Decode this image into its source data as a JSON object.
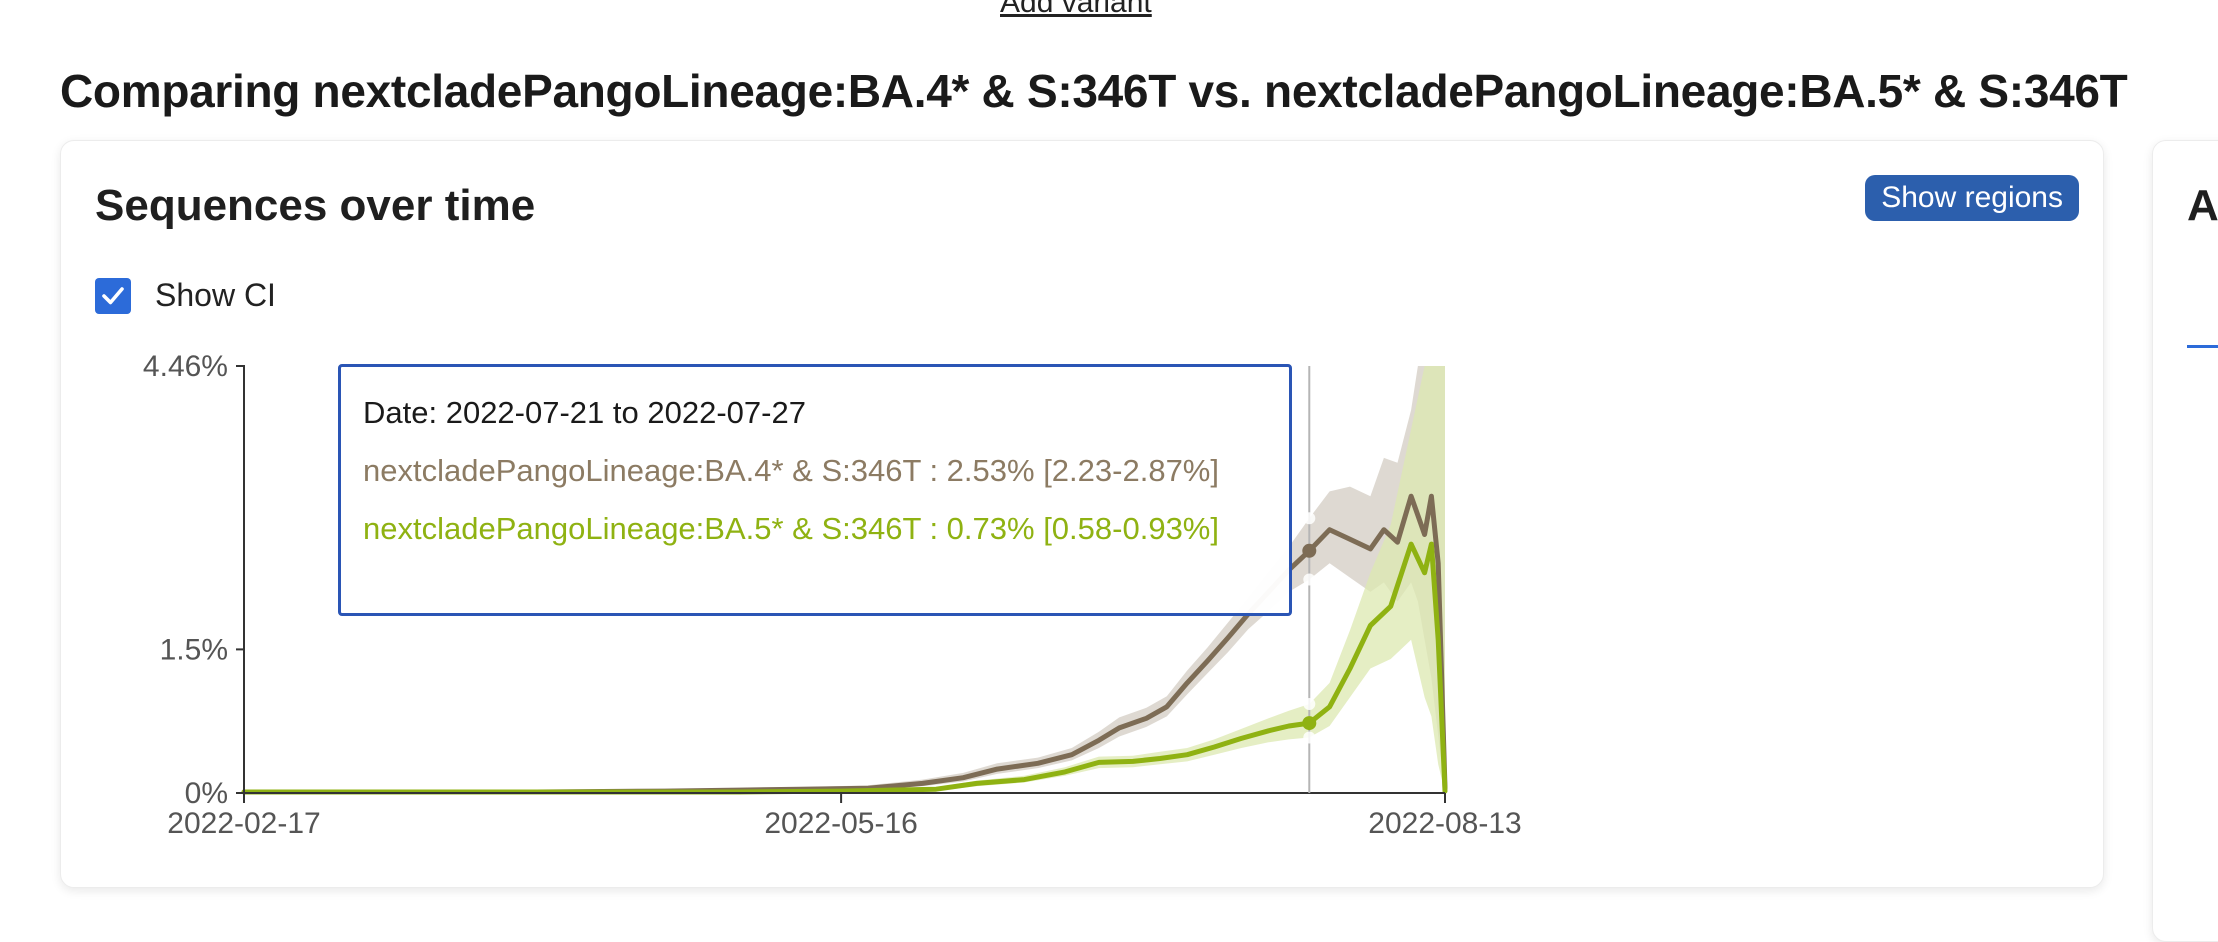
{
  "header": {
    "add_variant": "Add variant",
    "title": "Comparing nextcladePangoLineage:BA.4* & S:346T vs. nextcladePangoLineage:BA.5* & S:346T"
  },
  "card": {
    "title": "Sequences over time",
    "show_regions": "Show regions",
    "show_ci_label": "Show CI",
    "show_ci_checked": true
  },
  "side_card": {
    "title_fragment": "A"
  },
  "tooltip": {
    "date": "Date: 2022-07-21 to 2022-07-27",
    "rows": [
      {
        "text": "nextcladePangoLineage:BA.4* & S:346T : 2.53% [2.23-2.87%]",
        "color": "#8c7b63"
      },
      {
        "text": "nextcladePangoLineage:BA.5* & S:346T : 0.73% [0.58-0.93%]",
        "color": "#8fb212"
      }
    ]
  },
  "chart_data": {
    "type": "line",
    "x_ticks": [
      "2022-02-17",
      "2022-05-16",
      "2022-08-13"
    ],
    "y_ticks": [
      "0%",
      "1.5%",
      "4.46%"
    ],
    "ylim": [
      0,
      4.46
    ],
    "xlim": [
      "2022-02-17",
      "2022-08-13"
    ],
    "hover_date": "2022-07-24",
    "series": [
      {
        "name": "nextcladePangoLineage:BA.4* & S:346T",
        "color": "#7d6c55",
        "band_color": "#d8d2ca",
        "points": [
          [
            "2022-02-17",
            0.01,
            0,
            0.03
          ],
          [
            "2022-03-10",
            0.01,
            0,
            0.03
          ],
          [
            "2022-04-01",
            0.01,
            0,
            0.03
          ],
          [
            "2022-04-20",
            0.02,
            0.01,
            0.04
          ],
          [
            "2022-05-01",
            0.03,
            0.01,
            0.05
          ],
          [
            "2022-05-10",
            0.04,
            0.02,
            0.06
          ],
          [
            "2022-05-20",
            0.05,
            0.03,
            0.08
          ],
          [
            "2022-05-28",
            0.1,
            0.07,
            0.14
          ],
          [
            "2022-06-03",
            0.16,
            0.12,
            0.21
          ],
          [
            "2022-06-08",
            0.25,
            0.2,
            0.31
          ],
          [
            "2022-06-14",
            0.31,
            0.26,
            0.37
          ],
          [
            "2022-06-19",
            0.4,
            0.34,
            0.47
          ],
          [
            "2022-06-23",
            0.55,
            0.47,
            0.64
          ],
          [
            "2022-06-26",
            0.68,
            0.59,
            0.79
          ],
          [
            "2022-06-30",
            0.78,
            0.69,
            0.89
          ],
          [
            "2022-07-03",
            0.9,
            0.8,
            1.01
          ],
          [
            "2022-07-06",
            1.15,
            1.03,
            1.28
          ],
          [
            "2022-07-09",
            1.38,
            1.25,
            1.52
          ],
          [
            "2022-07-12",
            1.62,
            1.47,
            1.78
          ],
          [
            "2022-07-15",
            1.87,
            1.71,
            2.04
          ],
          [
            "2022-07-18",
            2.1,
            1.9,
            2.31
          ],
          [
            "2022-07-21",
            2.33,
            2.1,
            2.57
          ],
          [
            "2022-07-24",
            2.53,
            2.23,
            2.87
          ],
          [
            "2022-07-27",
            2.75,
            2.4,
            3.15
          ],
          [
            "2022-07-30",
            2.65,
            2.25,
            3.2
          ],
          [
            "2022-08-02",
            2.55,
            2.1,
            3.1
          ],
          [
            "2022-08-04",
            2.75,
            2.2,
            3.5
          ],
          [
            "2022-08-06",
            2.62,
            2.0,
            3.45
          ],
          [
            "2022-08-08",
            3.1,
            2.2,
            4.0
          ],
          [
            "2022-08-09",
            2.9,
            2.0,
            4.46
          ],
          [
            "2022-08-10",
            2.7,
            1.6,
            4.46
          ],
          [
            "2022-08-11",
            3.1,
            1.2,
            4.46
          ],
          [
            "2022-08-12",
            2.4,
            0.6,
            4.46
          ],
          [
            "2022-08-13",
            0.05,
            0,
            4.46
          ]
        ]
      },
      {
        "name": "nextcladePangoLineage:BA.5* & S:346T",
        "color": "#8fb212",
        "band_color": "#dce8b0",
        "points": [
          [
            "2022-02-17",
            0.01,
            0,
            0.02
          ],
          [
            "2022-03-15",
            0.01,
            0,
            0.02
          ],
          [
            "2022-04-10",
            0.01,
            0,
            0.02
          ],
          [
            "2022-05-01",
            0.01,
            0,
            0.02
          ],
          [
            "2022-05-16",
            0.02,
            0.01,
            0.03
          ],
          [
            "2022-05-30",
            0.04,
            0.02,
            0.06
          ],
          [
            "2022-06-05",
            0.1,
            0.07,
            0.13
          ],
          [
            "2022-06-12",
            0.14,
            0.11,
            0.18
          ],
          [
            "2022-06-18",
            0.22,
            0.18,
            0.27
          ],
          [
            "2022-06-23",
            0.32,
            0.26,
            0.38
          ],
          [
            "2022-06-28",
            0.33,
            0.27,
            0.39
          ],
          [
            "2022-07-02",
            0.36,
            0.3,
            0.43
          ],
          [
            "2022-07-06",
            0.4,
            0.33,
            0.47
          ],
          [
            "2022-07-10",
            0.48,
            0.4,
            0.56
          ],
          [
            "2022-07-14",
            0.57,
            0.47,
            0.67
          ],
          [
            "2022-07-18",
            0.65,
            0.53,
            0.78
          ],
          [
            "2022-07-21",
            0.7,
            0.56,
            0.86
          ],
          [
            "2022-07-24",
            0.73,
            0.58,
            0.93
          ],
          [
            "2022-07-27",
            0.9,
            0.7,
            1.15
          ],
          [
            "2022-07-30",
            1.3,
            1.0,
            1.7
          ],
          [
            "2022-08-02",
            1.75,
            1.3,
            2.3
          ],
          [
            "2022-08-05",
            1.95,
            1.4,
            2.8
          ],
          [
            "2022-08-08",
            2.6,
            1.6,
            3.8
          ],
          [
            "2022-08-10",
            2.3,
            1.0,
            4.46
          ],
          [
            "2022-08-11",
            2.6,
            0.8,
            4.46
          ],
          [
            "2022-08-12",
            1.6,
            0.3,
            4.46
          ],
          [
            "2022-08-13",
            0.02,
            0,
            4.46
          ]
        ]
      }
    ]
  }
}
